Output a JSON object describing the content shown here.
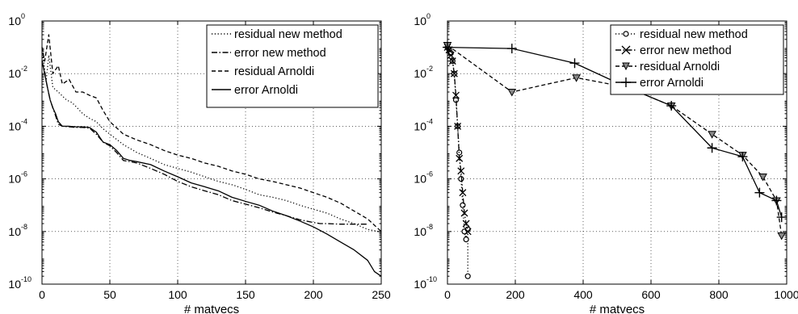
{
  "chart_data": [
    {
      "type": "line",
      "yscale": "log",
      "xlim": [
        0,
        250
      ],
      "ylim": [
        1e-10,
        1
      ],
      "xticks": [
        "0",
        "50",
        "100",
        "150",
        "200",
        "250"
      ],
      "yticks": [
        -10,
        -8,
        -6,
        -4,
        -2,
        0
      ],
      "xlabel": "# matvecs",
      "grid": true,
      "legend_position": "top-right",
      "series": [
        {
          "name": "residual new method",
          "style": "dotted",
          "x": [
            0,
            3,
            5,
            8,
            12,
            18,
            22,
            26,
            30,
            35,
            40,
            45,
            50,
            60,
            70,
            80,
            90,
            100,
            110,
            120,
            130,
            140,
            150,
            160,
            170,
            180,
            190,
            200,
            210,
            220,
            230,
            240,
            248
          ],
          "y": [
            0.1,
            0.005,
            0.05,
            0.003,
            0.002,
            0.001,
            0.0008,
            0.0005,
            0.0003,
            0.0002,
            0.00015,
            8e-05,
            5e-05,
            2e-05,
            1e-05,
            6e-06,
            3.5e-06,
            2.5e-06,
            1.8e-06,
            1.2e-06,
            8e-07,
            6e-07,
            4e-07,
            2.5e-07,
            2e-07,
            1.5e-07,
            1e-07,
            7e-08,
            5e-08,
            3e-08,
            2e-08,
            1.2e-08,
            1e-08
          ]
        },
        {
          "name": "error new method",
          "style": "dashdot",
          "x": [
            0,
            2,
            4,
            6,
            8,
            10,
            12,
            15,
            20,
            25,
            30,
            35,
            40,
            45,
            50,
            55,
            60,
            65,
            70,
            80,
            90,
            100,
            110,
            120,
            130,
            140,
            150,
            160,
            170,
            180,
            190,
            200,
            205,
            210,
            220,
            230,
            240
          ],
          "y": [
            0.03,
            0.01,
            0.003,
            0.001,
            0.0005,
            0.00025,
            0.00012,
            0.0001,
            9.5e-05,
            9e-05,
            9e-05,
            8.5e-05,
            5e-05,
            2.5e-05,
            1.8e-05,
            1e-05,
            5e-06,
            4.5e-06,
            4e-06,
            2.5e-06,
            1.5e-06,
            8e-07,
            5e-07,
            3.5e-07,
            2.5e-07,
            1.5e-07,
            1.1e-07,
            8e-08,
            5.5e-08,
            4e-08,
            2.8e-08,
            2.2e-08,
            2e-08,
            2e-08,
            1.9e-08,
            1.9e-08,
            1.9e-08
          ]
        },
        {
          "name": "residual Arnoldi",
          "style": "dashed",
          "x": [
            0,
            2,
            5,
            8,
            12,
            15,
            20,
            25,
            30,
            35,
            40,
            45,
            50,
            60,
            70,
            80,
            90,
            100,
            110,
            120,
            130,
            140,
            150,
            160,
            170,
            180,
            190,
            200,
            210,
            220,
            230,
            240,
            250
          ],
          "y": [
            0.1,
            0.03,
            0.3,
            0.01,
            0.02,
            0.004,
            0.006,
            0.002,
            0.002,
            0.0015,
            0.0012,
            0.0004,
            0.00015,
            5e-05,
            3e-05,
            2e-05,
            1.2e-05,
            8e-06,
            6e-06,
            4e-06,
            3e-06,
            2e-06,
            1.5e-06,
            1e-06,
            8e-07,
            6e-07,
            4.5e-07,
            3e-07,
            2e-07,
            1.2e-07,
            6e-08,
            3e-08,
            1e-08
          ]
        },
        {
          "name": "error Arnoldi",
          "style": "solid",
          "x": [
            0,
            2,
            4,
            6,
            8,
            10,
            12,
            15,
            20,
            25,
            30,
            35,
            40,
            45,
            50,
            55,
            60,
            65,
            70,
            80,
            90,
            100,
            110,
            120,
            130,
            140,
            150,
            160,
            170,
            180,
            190,
            200,
            210,
            220,
            230,
            240,
            245,
            250
          ],
          "y": [
            0.03,
            0.01,
            0.003,
            0.001,
            0.0005,
            0.0003,
            0.00015,
            0.0001,
            0.0001,
            9.5e-05,
            9.5e-05,
            9e-05,
            6e-05,
            2.5e-05,
            2e-05,
            1.2e-05,
            6e-06,
            5e-06,
            4.5e-06,
            3.5e-06,
            2e-06,
            1.2e-06,
            7e-07,
            5e-07,
            3.5e-07,
            2e-07,
            1.4e-07,
            1e-07,
            6e-08,
            4e-08,
            2.5e-08,
            1.5e-08,
            8e-09,
            4e-09,
            2e-09,
            8e-10,
            3e-10,
            2e-10
          ]
        }
      ]
    },
    {
      "type": "line",
      "yscale": "log",
      "xlim": [
        0,
        1000
      ],
      "ylim": [
        1e-10,
        1
      ],
      "xticks": [
        "0",
        "200",
        "400",
        "600",
        "800",
        "1000"
      ],
      "yticks": [
        -10,
        -8,
        -6,
        -4,
        -2,
        0
      ],
      "xlabel": "# matvecs",
      "grid": true,
      "legend_position": "top-right",
      "series": [
        {
          "name": "residual new method",
          "style": "dotted",
          "marker": "circle",
          "x": [
            0,
            5,
            10,
            15,
            20,
            25,
            30,
            35,
            40,
            45,
            50,
            55,
            60,
            60
          ],
          "y": [
            0.1,
            0.08,
            0.06,
            0.03,
            0.01,
            0.001,
            0.0001,
            1e-05,
            1e-06,
            1e-07,
            1e-08,
            5e-09,
            1.2e-08,
            2e-10
          ]
        },
        {
          "name": "error new method",
          "style": "dashdot",
          "marker": "x",
          "x": [
            0,
            5,
            10,
            15,
            20,
            25,
            30,
            35,
            40,
            45,
            50,
            55,
            60
          ],
          "y": [
            0.1,
            0.08,
            0.05,
            0.03,
            0.01,
            0.0015,
            0.0001,
            6e-06,
            2e-06,
            3e-07,
            5e-08,
            2e-08,
            1e-08
          ]
        },
        {
          "name": "residual Arnoldi",
          "style": "dashed",
          "marker": "triangle-down",
          "x": [
            0,
            190,
            380,
            530,
            660,
            780,
            870,
            930,
            970,
            985
          ],
          "y": [
            0.12,
            0.002,
            0.007,
            0.003,
            0.0006,
            5e-05,
            8e-06,
            1.2e-06,
            1.5e-07,
            7e-09
          ]
        },
        {
          "name": "error Arnoldi",
          "style": "solid",
          "marker": "plus",
          "x": [
            0,
            190,
            375,
            530,
            660,
            780,
            870,
            920,
            970,
            985
          ],
          "y": [
            0.1,
            0.09,
            0.025,
            0.003,
            0.0006,
            1.5e-05,
            7e-06,
            3e-07,
            1.5e-07,
            3.5e-08
          ]
        }
      ]
    }
  ]
}
